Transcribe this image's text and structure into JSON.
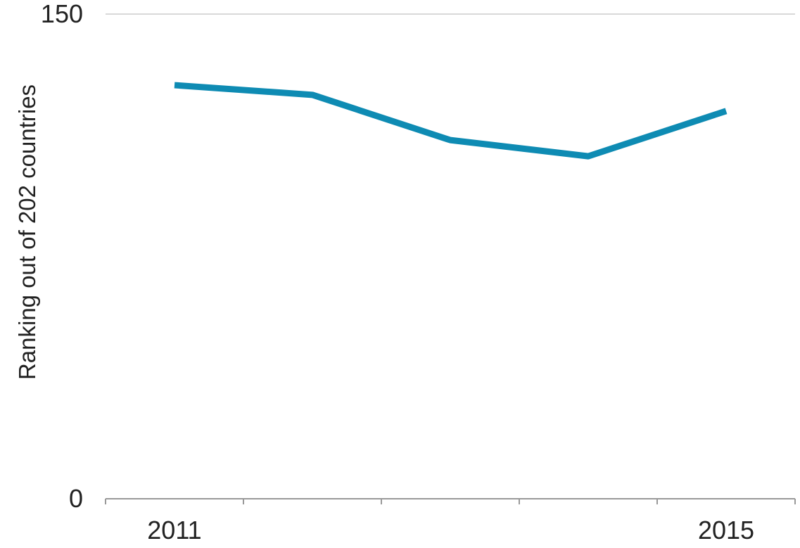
{
  "chart_data": {
    "type": "line",
    "x": [
      "2011",
      "2012",
      "2013",
      "2014",
      "2015"
    ],
    "series": [
      {
        "values": [
          128,
          125,
          111,
          106,
          120
        ],
        "color": "#0e8bb3"
      }
    ],
    "ylabel": "Ranking out of 202 countries",
    "xlabel": "",
    "ylim": [
      0,
      150
    ],
    "y_ticks": [
      "0",
      "150"
    ],
    "x_tick_labels": [
      "2011",
      "",
      "",
      "",
      "2015"
    ],
    "grid": "top line only",
    "legend": "none"
  }
}
